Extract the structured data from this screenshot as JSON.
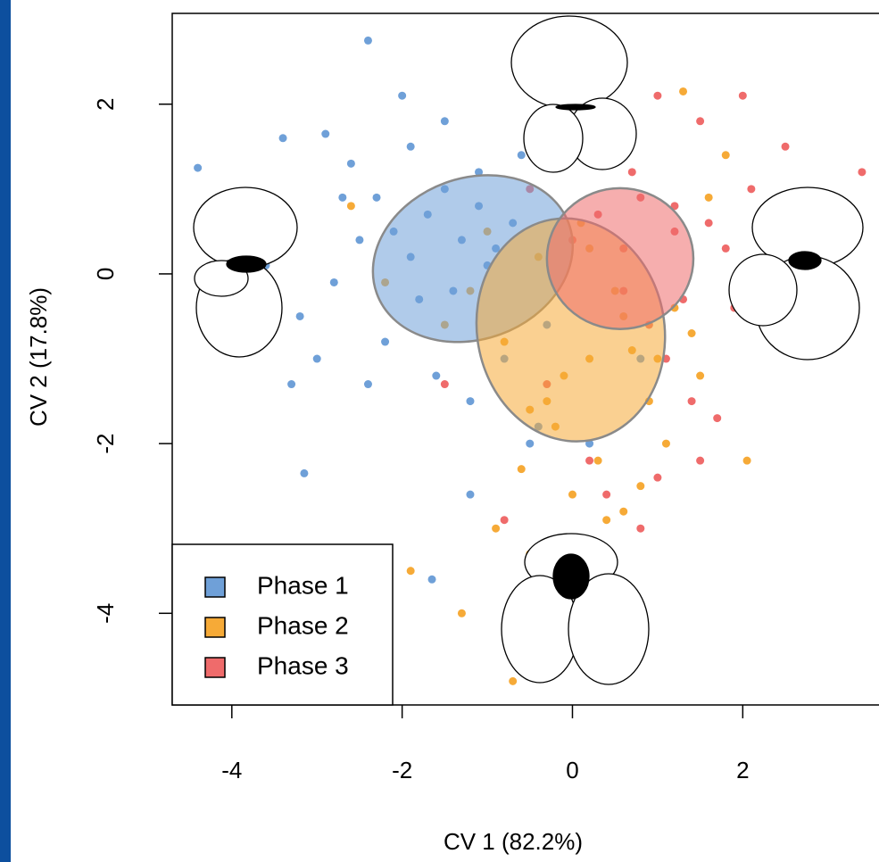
{
  "chart_data": {
    "type": "scatter",
    "xlabel": "CV 1 (82.2%)",
    "ylabel": "CV 2 (17.8%)",
    "xlim": [
      -4.7,
      3.6
    ],
    "ylim": [
      -5.08,
      3.07
    ],
    "xticks": [
      -4,
      -2,
      0,
      2
    ],
    "yticks": [
      -4,
      -2,
      0,
      2
    ],
    "legend": "bottom-left",
    "series": [
      {
        "name": "Phase 1",
        "color": "#6fa0d8",
        "x": [
          -4.4,
          -2.4,
          -3.15,
          -1.65,
          -0.1,
          -2.0,
          -3.8,
          -3.4,
          -2.9,
          -2.6,
          -2.3,
          -2.1,
          -1.9,
          -1.7,
          -1.5,
          -1.3,
          -1.1,
          -0.9,
          -0.7,
          -1.8,
          -1.4,
          -1.0,
          -2.5,
          -2.8,
          -3.2,
          -3.6,
          -3.0,
          -2.2,
          -1.6,
          -1.2,
          -0.8,
          -0.5,
          -0.3,
          -2.7,
          -1.9,
          -1.5,
          -1.1,
          -0.6,
          -2.4,
          -3.3,
          -1.2,
          -0.4,
          0.2,
          0.8,
          -0.2
        ],
        "values": [
          1.25,
          2.75,
          -2.35,
          -3.6,
          2.2,
          2.1,
          -0.85,
          1.6,
          1.65,
          1.3,
          0.9,
          0.5,
          0.2,
          0.7,
          1.0,
          0.4,
          0.8,
          0.3,
          0.6,
          -0.3,
          -0.2,
          0.1,
          0.4,
          -0.1,
          -0.5,
          0.1,
          -1.0,
          -0.8,
          -1.2,
          -1.5,
          -1.0,
          -2.0,
          -0.6,
          0.9,
          1.5,
          1.8,
          1.2,
          1.4,
          -1.3,
          -1.3,
          -2.6,
          -1.8,
          -2.0,
          -1.0,
          1.6
        ],
        "ellipse": {
          "center": [
            -1.17,
            0.18
          ],
          "radii": [
            1.2,
            0.95
          ],
          "angle": -20
        }
      },
      {
        "name": "Phase 2",
        "color": "#f6aa37",
        "x": [
          -1.3,
          -0.7,
          1.3,
          2.05,
          -1.9,
          -0.5,
          0.0,
          0.4,
          0.8,
          1.1,
          -0.3,
          0.2,
          0.6,
          -0.8,
          -1.0,
          0.9,
          1.5,
          1.8,
          -0.4,
          0.1,
          0.5,
          -0.2,
          0.3,
          0.7,
          1.2,
          -0.6,
          -1.2,
          -1.5,
          -0.9,
          0.0,
          0.4,
          1.0,
          1.6,
          -2.6,
          -2.2,
          0.6,
          -0.1,
          0.2,
          1.4,
          -0.5
        ],
        "values": [
          -4.0,
          -4.8,
          2.15,
          -2.2,
          -3.5,
          -3.3,
          -2.6,
          -2.9,
          -2.5,
          -2.0,
          -1.5,
          -1.0,
          -0.5,
          -0.8,
          0.5,
          -1.5,
          -1.2,
          1.4,
          0.2,
          0.6,
          -0.2,
          -1.8,
          -2.2,
          -0.9,
          -0.4,
          -2.3,
          -0.2,
          -0.6,
          -3.0,
          -4.3,
          -3.8,
          -1.0,
          0.9,
          0.8,
          -0.1,
          -2.8,
          -1.2,
          0.3,
          -0.7,
          -1.6
        ],
        "ellipse": {
          "center": [
            -0.02,
            -0.66
          ],
          "radii": [
            1.1,
            1.32
          ],
          "angle": -10
        }
      },
      {
        "name": "Phase 3",
        "color": "#ef6b6b",
        "x": [
          3.4,
          2.0,
          1.7,
          0.2,
          1.0,
          1.5,
          2.5,
          2.8,
          3.0,
          0.5,
          0.8,
          1.2,
          1.8,
          2.2,
          0.3,
          0.6,
          0.9,
          1.3,
          1.6,
          2.4,
          -0.2,
          -0.5,
          0.1,
          0.7,
          1.1,
          1.4,
          2.6,
          1.9,
          0.4,
          -0.8,
          1.0,
          1.5,
          0.8,
          0.2,
          -0.3,
          2.1,
          0.6,
          1.2,
          -1.5,
          0.0
        ],
        "values": [
          1.2,
          2.1,
          -1.7,
          -3.7,
          2.1,
          1.8,
          1.5,
          0.8,
          0.2,
          1.5,
          0.9,
          0.5,
          0.3,
          0.0,
          0.7,
          -0.2,
          -0.6,
          -0.3,
          0.6,
          -0.6,
          1.4,
          1.0,
          1.6,
          1.2,
          -1.0,
          -1.5,
          -0.9,
          -0.4,
          -2.6,
          -2.9,
          -2.4,
          -2.2,
          -3.0,
          -2.2,
          -1.3,
          1.0,
          0.3,
          0.8,
          -1.3,
          0.4
        ],
        "ellipse": {
          "center": [
            0.56,
            0.18
          ],
          "radii": [
            0.86,
            0.83
          ],
          "angle": 0
        }
      }
    ]
  }
}
